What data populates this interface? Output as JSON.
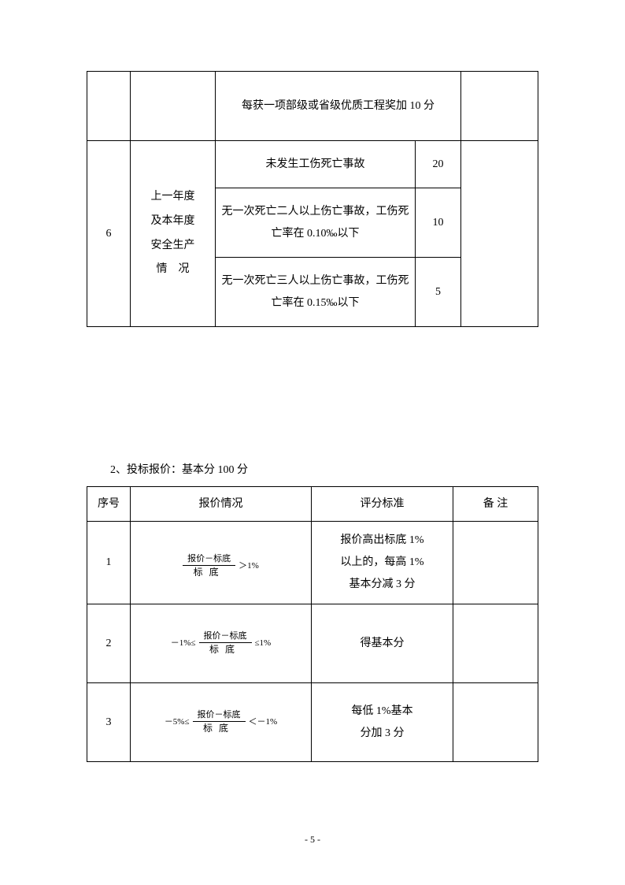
{
  "table1": {
    "r1": {
      "criteria": "每获一项部级或省级优质工程奖加 10 分"
    },
    "r2": {
      "seq": "6",
      "category_l1": "上一年度",
      "category_l2": "及本年度",
      "category_l3": "安全生产",
      "category_l4": "情　况",
      "a_criteria": "未发生工伤死亡事故",
      "a_score": "20",
      "b_criteria": "无一次死亡二人以上伤亡事故，工伤死亡率在 0.10‰以下",
      "b_score": "10",
      "c_criteria": "无一次死亡三人以上伤亡事故，工伤死亡率在 0.15‰以下",
      "c_score": "5"
    }
  },
  "section2_title": "2、投标报价：基本分 100 分",
  "table2": {
    "head": {
      "c1": "序号",
      "c2": "报价情况",
      "c3": "评分标准",
      "c4": "备  注"
    },
    "r1": {
      "seq": "1",
      "f_num": "报价－标底",
      "f_den": "标底",
      "f_right": "＞1%",
      "std_l1": "报价高出标底 1%",
      "std_l2": "以上的，每高 1%",
      "std_l3": "基本分减 3 分"
    },
    "r2": {
      "seq": "2",
      "f_left": "－1%≤",
      "f_num": "报价－标底",
      "f_den": "标底",
      "f_right": "≤1%",
      "std": "得基本分"
    },
    "r3": {
      "seq": "3",
      "f_left": "－5%≤",
      "f_num": "报价－标底",
      "f_den": "标底",
      "f_right": "＜－1%",
      "std_l1": "每低 1%基本",
      "std_l2": "分加 3 分"
    }
  },
  "page_number": "- 5 -"
}
